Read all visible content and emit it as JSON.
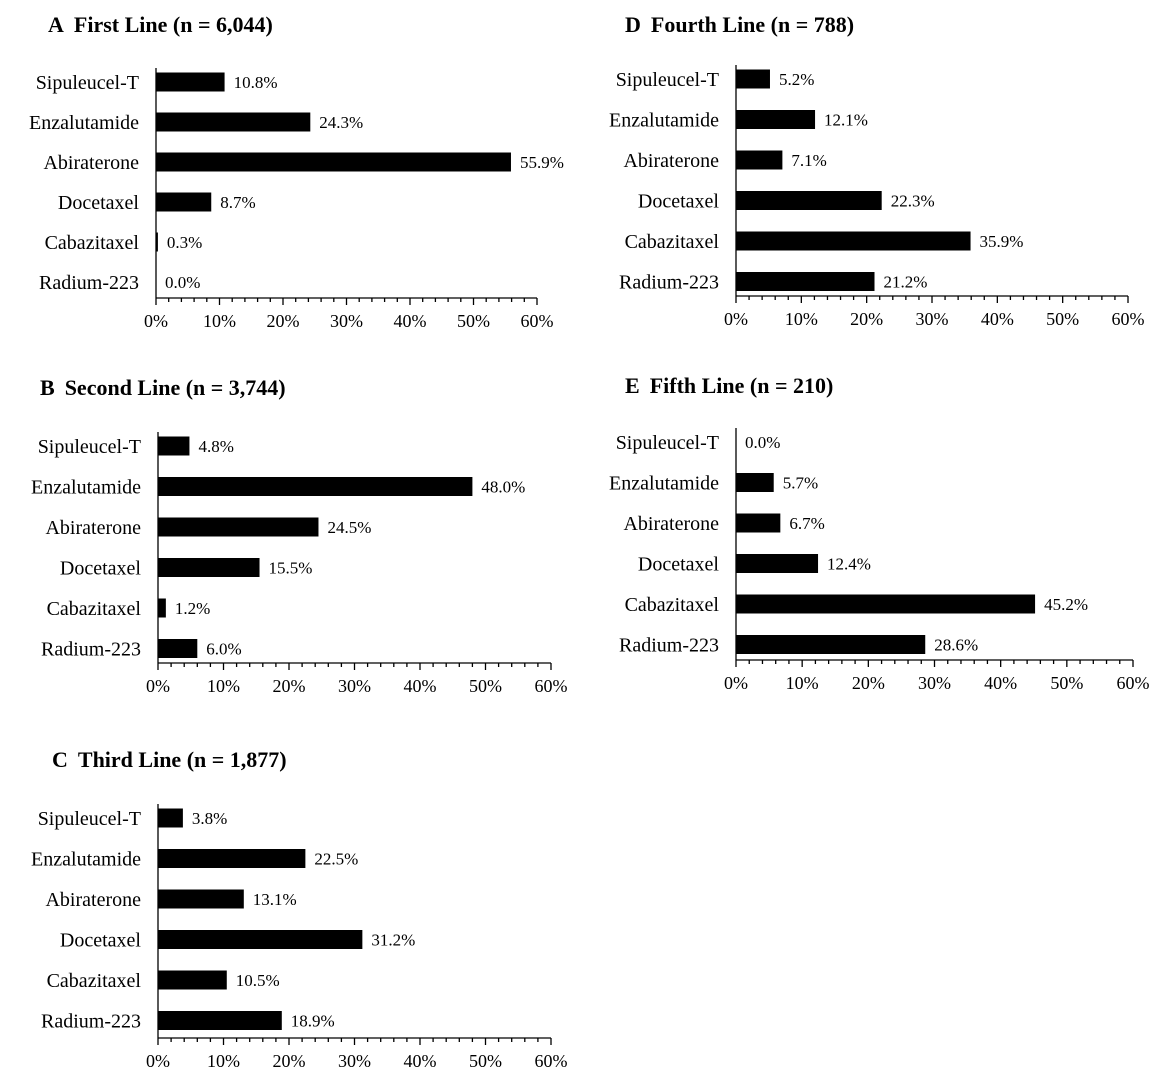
{
  "chart_data": [
    {
      "panel": "A",
      "title": "First Line (n = 6,044)",
      "type": "bar",
      "orientation": "horizontal",
      "categories": [
        "Sipuleucel-T",
        "Enzalutamide",
        "Abiraterone",
        "Docetaxel",
        "Cabazitaxel",
        "Radium-223"
      ],
      "values": [
        10.8,
        24.3,
        55.9,
        8.7,
        0.3,
        0.0
      ],
      "value_labels": [
        "10.8%",
        "24.3%",
        "55.9%",
        "8.7%",
        "0.3%",
        "0.0%"
      ],
      "xlim": [
        0,
        60
      ],
      "xticks": [
        "0%",
        "10%",
        "20%",
        "30%",
        "40%",
        "50%",
        "60%"
      ],
      "bar_color": "#000000"
    },
    {
      "panel": "B",
      "title": "Second Line (n = 3,744)",
      "type": "bar",
      "orientation": "horizontal",
      "categories": [
        "Sipuleucel-T",
        "Enzalutamide",
        "Abiraterone",
        "Docetaxel",
        "Cabazitaxel",
        "Radium-223"
      ],
      "values": [
        4.8,
        48.0,
        24.5,
        15.5,
        1.2,
        6.0
      ],
      "value_labels": [
        "4.8%",
        "48.0%",
        "24.5%",
        "15.5%",
        "1.2%",
        "6.0%"
      ],
      "xlim": [
        0,
        60
      ],
      "xticks": [
        "0%",
        "10%",
        "20%",
        "30%",
        "40%",
        "50%",
        "60%"
      ],
      "bar_color": "#000000"
    },
    {
      "panel": "C",
      "title": "Third Line (n = 1,877)",
      "type": "bar",
      "orientation": "horizontal",
      "categories": [
        "Sipuleucel-T",
        "Enzalutamide",
        "Abiraterone",
        "Docetaxel",
        "Cabazitaxel",
        "Radium-223"
      ],
      "values": [
        3.8,
        22.5,
        13.1,
        31.2,
        10.5,
        18.9
      ],
      "value_labels": [
        "3.8%",
        "22.5%",
        "13.1%",
        "31.2%",
        "10.5%",
        "18.9%"
      ],
      "xlim": [
        0,
        60
      ],
      "xticks": [
        "0%",
        "10%",
        "20%",
        "30%",
        "40%",
        "50%",
        "60%"
      ],
      "bar_color": "#000000"
    },
    {
      "panel": "D",
      "title": "Fourth Line (n = 788)",
      "type": "bar",
      "orientation": "horizontal",
      "categories": [
        "Sipuleucel-T",
        "Enzalutamide",
        "Abiraterone",
        "Docetaxel",
        "Cabazitaxel",
        "Radium-223"
      ],
      "values": [
        5.2,
        12.1,
        7.1,
        22.3,
        35.9,
        21.2
      ],
      "value_labels": [
        "5.2%",
        "12.1%",
        "7.1%",
        "22.3%",
        "35.9%",
        "21.2%"
      ],
      "xlim": [
        0,
        60
      ],
      "xticks": [
        "0%",
        "10%",
        "20%",
        "30%",
        "40%",
        "50%",
        "60%"
      ],
      "bar_color": "#000000"
    },
    {
      "panel": "E",
      "title": "Fifth Line (n = 210)",
      "type": "bar",
      "orientation": "horizontal",
      "categories": [
        "Sipuleucel-T",
        "Enzalutamide",
        "Abiraterone",
        "Docetaxel",
        "Cabazitaxel",
        "Radium-223"
      ],
      "values": [
        0.0,
        5.7,
        6.7,
        12.4,
        45.2,
        28.6
      ],
      "value_labels": [
        "0.0%",
        "5.7%",
        "6.7%",
        "12.4%",
        "45.2%",
        "28.6%"
      ],
      "xlim": [
        0,
        60
      ],
      "xticks": [
        "0%",
        "10%",
        "20%",
        "30%",
        "40%",
        "50%",
        "60%"
      ],
      "bar_color": "#000000"
    }
  ]
}
